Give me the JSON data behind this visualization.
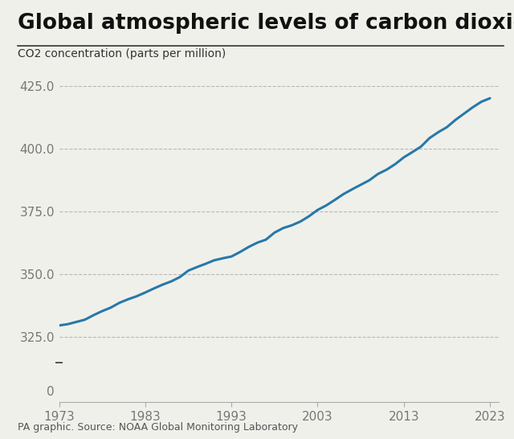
{
  "title": "Global atmospheric levels of carbon dioxide",
  "ylabel": "CO2 concentration (parts per million)",
  "footer": "PA graphic. Source: NOAA Global Monitoring Laboratory",
  "line_color": "#2878a8",
  "background_color": "#f0f0eb",
  "x_ticks": [
    1973,
    1983,
    1993,
    2003,
    2013,
    2023
  ],
  "y_ticks_main": [
    325.0,
    350.0,
    375.0,
    400.0,
    425.0
  ],
  "y_ticks_bottom": [
    0
  ],
  "xlim": [
    1973,
    2024
  ],
  "ylim_main_bottom": 315,
  "ylim_main_top": 432,
  "ylim_bottom_bottom": -8,
  "ylim_bottom_top": 20,
  "years": [
    1973,
    1974,
    1975,
    1976,
    1977,
    1978,
    1979,
    1980,
    1981,
    1982,
    1983,
    1984,
    1985,
    1986,
    1987,
    1988,
    1989,
    1990,
    1991,
    1992,
    1993,
    1994,
    1995,
    1996,
    1997,
    1998,
    1999,
    2000,
    2001,
    2002,
    2003,
    2004,
    2005,
    2006,
    2007,
    2008,
    2009,
    2010,
    2011,
    2012,
    2013,
    2014,
    2015,
    2016,
    2017,
    2018,
    2019,
    2020,
    2021,
    2022,
    2023
  ],
  "co2": [
    329.7,
    330.2,
    331.1,
    332.0,
    333.8,
    335.4,
    336.8,
    338.7,
    340.1,
    341.3,
    342.8,
    344.4,
    345.9,
    347.2,
    348.9,
    351.5,
    352.9,
    354.2,
    355.6,
    356.4,
    357.1,
    358.9,
    360.9,
    362.6,
    363.8,
    366.6,
    368.4,
    369.5,
    371.0,
    373.1,
    375.6,
    377.4,
    379.6,
    381.9,
    383.8,
    385.6,
    387.4,
    389.9,
    391.6,
    393.8,
    396.5,
    398.6,
    400.8,
    404.2,
    406.5,
    408.5,
    411.4,
    413.9,
    416.4,
    418.6,
    420.0
  ],
  "title_fontsize": 19,
  "label_fontsize": 10,
  "tick_fontsize": 11,
  "footer_fontsize": 9,
  "grid_color": "#aaaaaa",
  "spine_color": "#aaaaaa",
  "text_color": "#333333"
}
